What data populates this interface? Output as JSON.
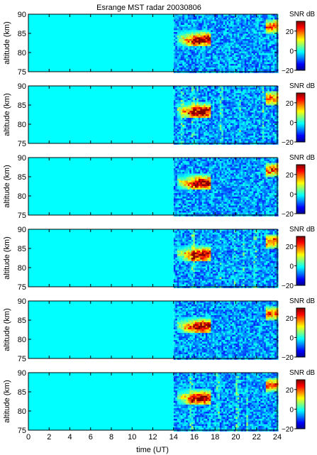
{
  "chart_data": {
    "type": "heatmap",
    "title": "Esrange MST radar 20030806",
    "xlabel": "time (UT)",
    "ylabel": "altitude (km)",
    "xlim": [
      0,
      24
    ],
    "ylim": [
      75,
      90
    ],
    "x_ticks": [
      "0",
      "2",
      "4",
      "6",
      "8",
      "10",
      "12",
      "14",
      "16",
      "18",
      "20",
      "22",
      "24"
    ],
    "y_ticks": [
      "75",
      "80",
      "85",
      "90"
    ],
    "no_data_until_hour": 14,
    "colorbar": {
      "label": "SNR dB",
      "range": [
        -20,
        30
      ],
      "ticks": [
        "20",
        "0",
        "−20"
      ],
      "colormap": [
        "#00008f",
        "#0000ff",
        "#0080ff",
        "#00ffff",
        "#80ff80",
        "#ffff00",
        "#ff8000",
        "#ff0000",
        "#800000"
      ]
    },
    "panels": [
      {
        "ylabel": "altitude (km)",
        "cb_label": "SNR dB",
        "vertical_stripes": []
      },
      {
        "ylabel": "altitude (km)",
        "cb_label": "SNR dB",
        "vertical_stripes": [
          14.8,
          15.8,
          16.2,
          18.5,
          20.3,
          22.5
        ]
      },
      {
        "ylabel": "altitude (km)",
        "cb_label": "SNR dB",
        "vertical_stripes": []
      },
      {
        "ylabel": "altitude (km)",
        "cb_label": "SNR dB",
        "vertical_stripes": [
          15.8,
          18.4,
          19.8,
          20.7,
          21.8
        ]
      },
      {
        "ylabel": "altitude (km)",
        "cb_label": "SNR dB",
        "vertical_stripes": []
      },
      {
        "ylabel": "altitude (km)",
        "cb_label": "SNR dB",
        "vertical_stripes": [
          15.6,
          18.2,
          20.1,
          21.0
        ]
      }
    ],
    "features": [
      {
        "label": "echo-layer",
        "time_range": [
          14.3,
          17.5
        ],
        "altitude_range": [
          82,
          86
        ],
        "peak_time": 16.6,
        "peak_altitude": 83.5,
        "peak_snr": 30
      },
      {
        "label": "late-echo",
        "time_range": [
          22.8,
          24
        ],
        "altitude_range": [
          85,
          89
        ],
        "peak_snr": 15
      }
    ]
  }
}
